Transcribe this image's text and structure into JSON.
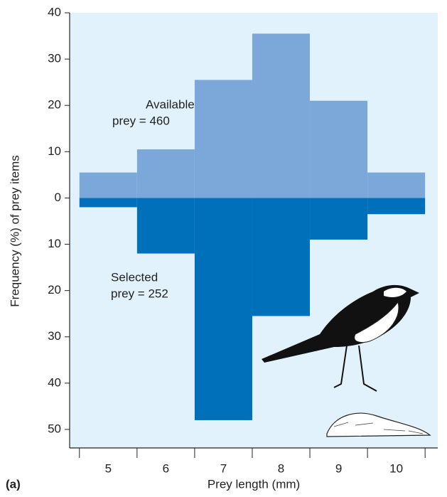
{
  "chart_data": {
    "type": "histogram",
    "y_label": "Frequency (%) of prey items",
    "x_label": "Prey length (mm)",
    "panel_label": "(a)",
    "annotations": [
      "Available",
      "prey = 460",
      "Selected",
      "prey = 252"
    ],
    "bins": [
      4.5,
      5.5,
      6.5,
      7.5,
      8.5,
      9.5,
      10.5
    ],
    "series": [
      {
        "color": "#7ba7d9",
        "values": [
          5.5,
          10.5,
          25.5,
          35.5,
          21,
          5.5
        ]
      },
      {
        "color": "#0070bb",
        "values": [
          -2,
          -12,
          -48,
          -25.5,
          -9,
          -3.5
        ]
      }
    ],
    "xlim": [
      4.33,
      10.72
    ],
    "xticks": [
      5,
      6,
      7,
      8,
      9,
      10
    ],
    "ylim": [
      -54,
      40
    ],
    "yticks": [
      40,
      30,
      20,
      10,
      0,
      {
        "value": -10,
        "label": "10"
      },
      {
        "value": -20,
        "label": "20"
      },
      {
        "value": -30,
        "label": "30"
      },
      {
        "value": -40,
        "label": "40"
      },
      {
        "value": -50,
        "label": "50"
      }
    ],
    "background": "#e2f2fc"
  }
}
